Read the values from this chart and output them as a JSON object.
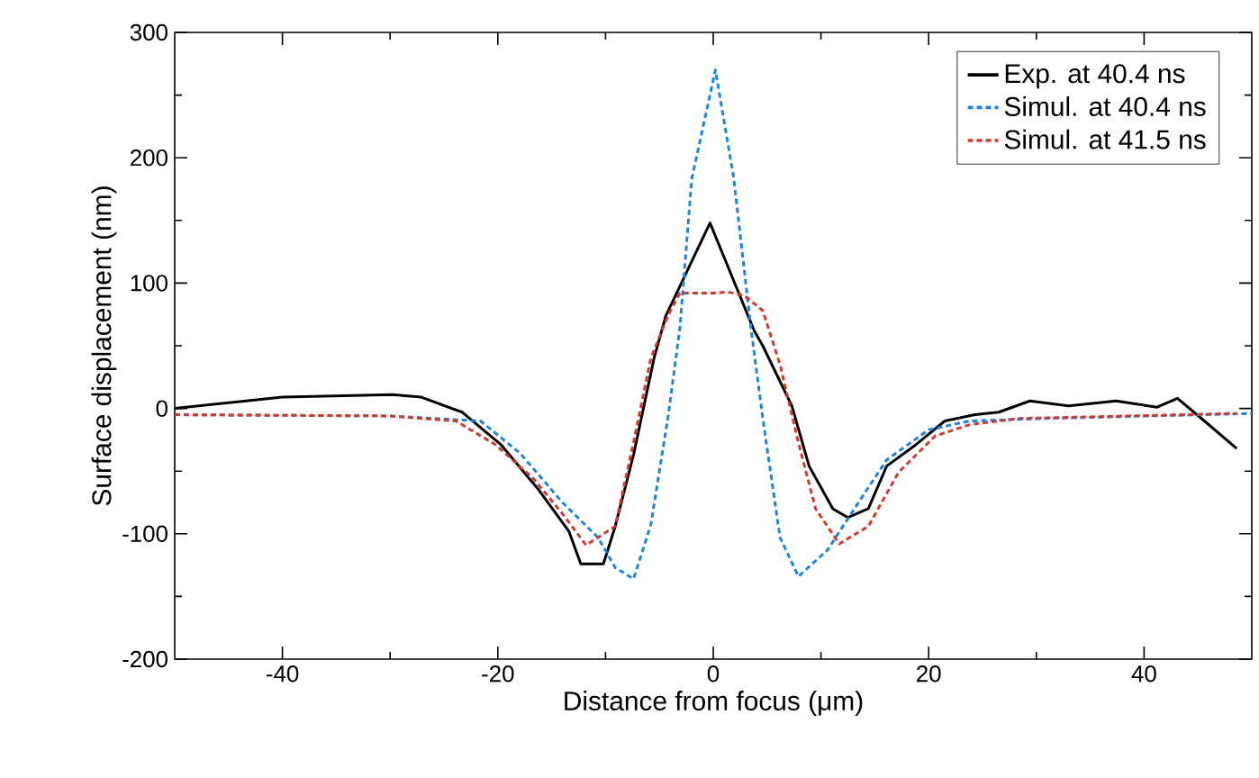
{
  "chart_data": {
    "type": "line",
    "xlabel": "Distance from focus (μm)",
    "ylabel": "Surface displacement (nm)",
    "xlim": [
      -50,
      50
    ],
    "ylim": [
      -200,
      300
    ],
    "xticks": [
      -40,
      -20,
      0,
      20,
      40
    ],
    "yticks": [
      -200,
      -100,
      0,
      100,
      200,
      300
    ],
    "legend": "top right",
    "series": [
      {
        "name": "Exp. at 40.4 ns",
        "color": "#000000",
        "line_style": "solid",
        "x": [
          -50,
          -40,
          -29.8,
          -27.1,
          -23.3,
          -19.7,
          -16.2,
          -13.4,
          -12.3,
          -10.2,
          -9.1,
          -7.4,
          -5.5,
          -4.4,
          -0.3,
          3.8,
          4.6,
          7.3,
          8.9,
          11.1,
          12.5,
          14.4,
          16.1,
          18.8,
          21.5,
          24.3,
          26.5,
          29.4,
          33,
          37.4,
          41.2,
          43.1,
          45.6,
          48.6
        ],
        "values": [
          0,
          9,
          11,
          9,
          -3,
          -29,
          -65,
          -98,
          -124,
          -124,
          -94,
          -37,
          40,
          74,
          148,
          62,
          50,
          2,
          -46,
          -80,
          -87,
          -80,
          -46,
          -29,
          -10,
          -5,
          -3,
          6,
          2,
          6,
          1,
          8,
          -10,
          -32
        ]
      },
      {
        "name": "Simul. at 40.4 ns",
        "color": "#1f84e0",
        "line_style": "dashed",
        "x": [
          -50,
          -30,
          -21.6,
          -17.9,
          -14,
          -10.7,
          -9.1,
          -7.4,
          -5.8,
          -4.2,
          -3.1,
          -2,
          0.2,
          1.9,
          3.5,
          4.6,
          6.2,
          7.9,
          10.6,
          12.8,
          16.1,
          20,
          23.8,
          30.8,
          50
        ],
        "values": [
          -5,
          -6,
          -10,
          -36,
          -75,
          -103,
          -127,
          -136,
          -93,
          -7,
          64,
          183,
          270,
          184,
          64,
          -8,
          -103,
          -134,
          -113,
          -84,
          -41,
          -17,
          -10,
          -8,
          -4
        ]
      },
      {
        "name": "Simul. at 41.5 ns",
        "color": "#d03a32",
        "line_style": "dashed",
        "x": [
          -50,
          -30,
          -23.9,
          -20.2,
          -16.7,
          -14,
          -11.8,
          -9.1,
          -7.4,
          -5.8,
          -4.2,
          -3.1,
          0,
          1.3,
          2.9,
          4.6,
          6.2,
          7.9,
          9.5,
          11.7,
          14.4,
          17.2,
          20.6,
          23.8,
          28.3,
          48.6
        ],
        "values": [
          -5,
          -6,
          -10,
          -29,
          -56,
          -84,
          -109,
          -94,
          -27,
          40,
          74,
          92,
          92,
          93,
          90,
          78,
          35,
          -27,
          -80,
          -108,
          -94,
          -51,
          -22,
          -13,
          -8,
          -4
        ]
      }
    ]
  }
}
